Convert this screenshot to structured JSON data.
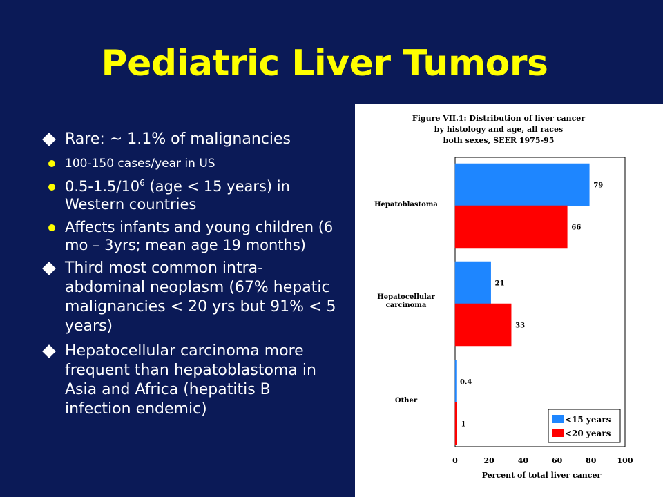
{
  "slide": {
    "title": "Pediatric Liver Tumors",
    "bullets": [
      {
        "text": "Rare: ~ 1.1% of malignancies",
        "sub": [
          {
            "text": "100-150 cases/year in US"
          },
          {
            "text_pre": "0.5-1.5/10",
            "sup": "6",
            "text_post": " (age < 15 years) in Western countries"
          },
          {
            "text": "Affects infants and young children (6 mo – 3yrs; mean age 19 months)"
          }
        ]
      },
      {
        "text": "Third most common intra-abdominal neoplasm (67% hepatic malignancies < 20 yrs but 91% < 5 years)"
      },
      {
        "text": "Hepatocellular carcinoma more frequent than hepatoblastoma in Asia and Africa (hepatitis B infection endemic)"
      }
    ]
  },
  "colors": {
    "background": "#0b1a57",
    "title": "#ffff00",
    "series_lt15": "#1e86ff",
    "series_lt20": "#ff0000"
  },
  "chart_data": {
    "type": "bar",
    "orientation": "horizontal",
    "title_lines": [
      "Figure VII.1:  Distribution of liver cancer",
      "by histology and age, all races",
      "both sexes, SEER 1975-95"
    ],
    "categories": [
      {
        "label_lines": [
          "Hepatoblastoma"
        ]
      },
      {
        "label_lines": [
          "Hepatocellular",
          "carcinoma"
        ]
      },
      {
        "label_lines": [
          "Other"
        ]
      }
    ],
    "series": [
      {
        "name": "<15 years",
        "color": "#1e86ff",
        "values": [
          79,
          21,
          0.4
        ],
        "labels": [
          "79",
          "21",
          "0.4"
        ]
      },
      {
        "name": "<20 years",
        "color": "#ff0000",
        "values": [
          66,
          33,
          1
        ],
        "labels": [
          "66",
          "33",
          "1"
        ]
      }
    ],
    "xlabel": "Percent of total liver cancer",
    "xlim": [
      0,
      100
    ],
    "xticks": [
      0,
      20,
      40,
      60,
      80,
      100
    ],
    "legend_position": "bottom-right"
  }
}
